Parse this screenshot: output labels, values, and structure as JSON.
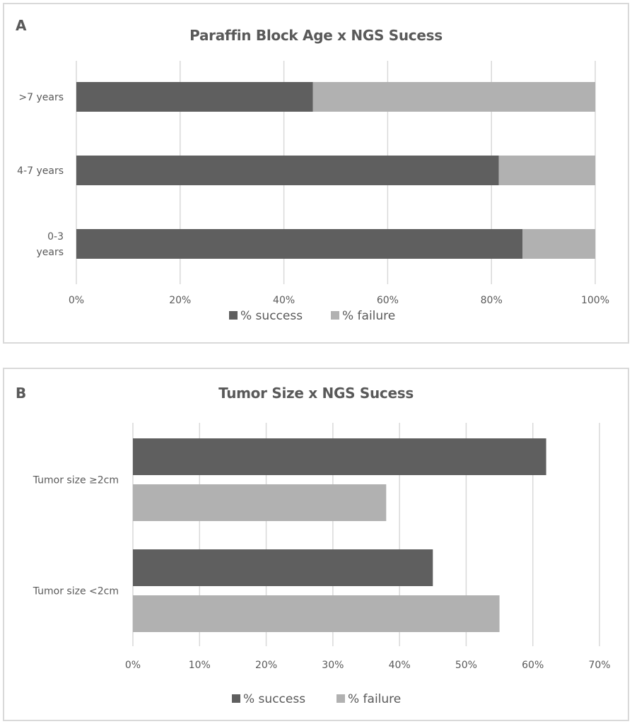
{
  "colors": {
    "success": "#5f5f5f",
    "failure": "#b1b1b1",
    "grid": "#d9d9d9",
    "text": "#595959"
  },
  "chart_data": [
    {
      "panel_label": "A",
      "type": "bar",
      "orientation": "horizontal",
      "stacked": true,
      "title": "Paraffin Block Age x NGS Sucess",
      "categories": [
        ">7 years",
        "4-7 years",
        "0-3 years"
      ],
      "category_display": [
        [
          ">7 years"
        ],
        [
          "4-7 years"
        ],
        [
          "0-3",
          "years"
        ]
      ],
      "series": [
        {
          "name": "% success",
          "values": [
            45.6,
            81.4,
            86.0
          ]
        },
        {
          "name": "% failure",
          "values": [
            54.4,
            18.6,
            14.0
          ]
        }
      ],
      "xlim": [
        0,
        100
      ],
      "xticks": [
        0,
        20,
        40,
        60,
        80,
        100
      ],
      "xtick_labels": [
        "0%",
        "20%",
        "40%",
        "60%",
        "80%",
        "100%"
      ],
      "grid": true,
      "legend": [
        "% success",
        "% failure"
      ],
      "legend_position": "bottom"
    },
    {
      "panel_label": "B",
      "type": "bar",
      "orientation": "horizontal",
      "stacked": false,
      "title": "Tumor Size x NGS Sucess",
      "categories": [
        "Tumor size ≥2cm",
        "Tumor size <2cm"
      ],
      "series": [
        {
          "name": "% success",
          "values": [
            62,
            45
          ]
        },
        {
          "name": "% failure",
          "values": [
            38,
            55
          ]
        }
      ],
      "xlim": [
        0,
        70
      ],
      "xticks": [
        0,
        10,
        20,
        30,
        40,
        50,
        60,
        70
      ],
      "xtick_labels": [
        "0%",
        "10%",
        "20%",
        "30%",
        "40%",
        "50%",
        "60%",
        "70%"
      ],
      "grid": true,
      "legend": [
        "% success",
        "% failure"
      ],
      "legend_position": "bottom"
    }
  ]
}
